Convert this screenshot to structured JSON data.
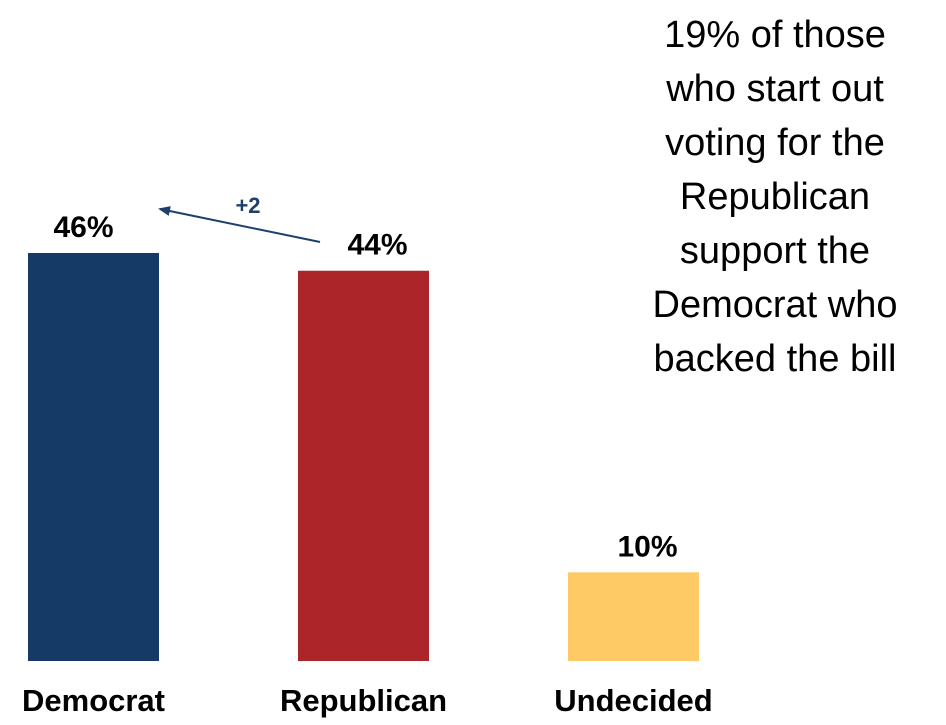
{
  "chart_data": {
    "type": "bar",
    "categories": [
      "Democrat",
      "Republican",
      "Undecided"
    ],
    "values": [
      46,
      44,
      10
    ],
    "value_labels": [
      "46%",
      "44%",
      "10%"
    ],
    "colors": [
      "#163a66",
      "#ab2529",
      "#fdca66"
    ],
    "ylim": [
      0,
      46
    ],
    "grid": false,
    "change_arrow": {
      "label": "+2",
      "from": "Republican",
      "to": "Democrat",
      "color": "#1d3f6b"
    },
    "annotation": {
      "lines": [
        "19% of those",
        "who start out",
        "voting for the",
        "Republican",
        "support the",
        "Democrat who",
        "backed the bill"
      ]
    }
  }
}
